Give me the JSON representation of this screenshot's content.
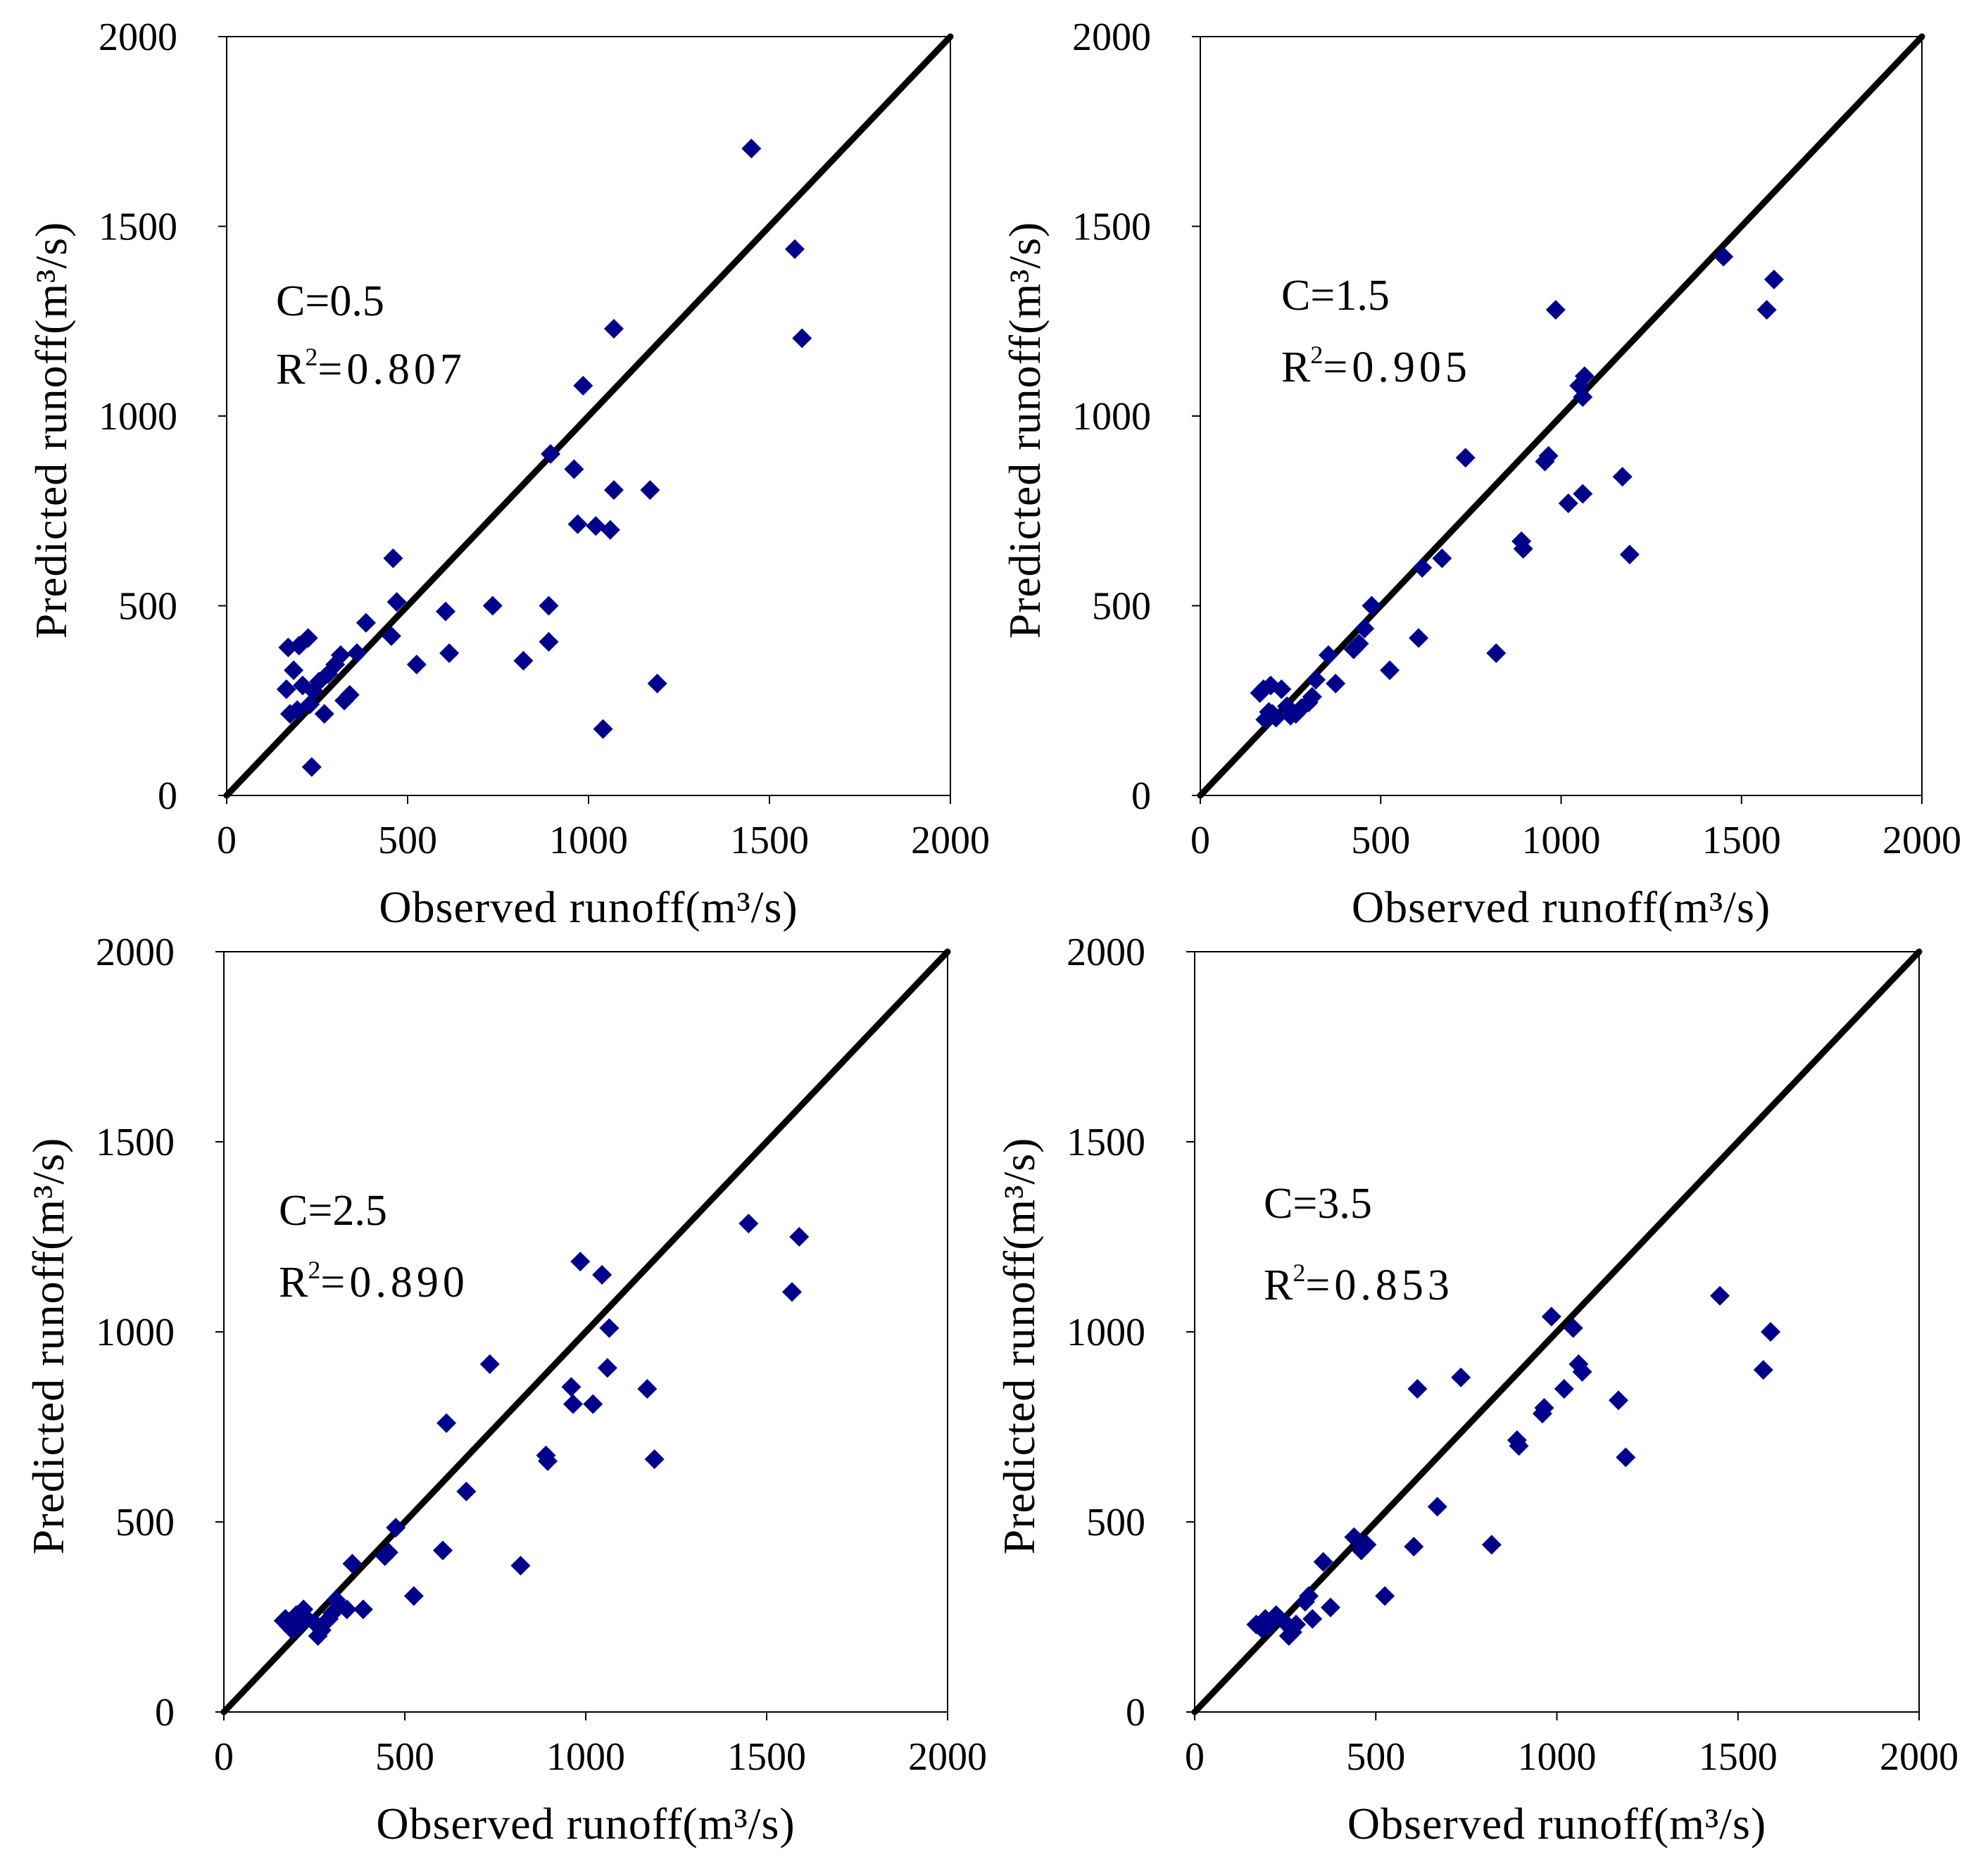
{
  "figure": {
    "colors": {
      "marker": "#00008B",
      "line": "#000000",
      "frame": "#000000"
    }
  },
  "chart_data": [
    {
      "type": "scatter",
      "panel": "top-left",
      "xlabel": "Observed runoff(m³/s)",
      "ylabel": "Predicted runoff(m³/s)",
      "xlim": [
        0,
        2000
      ],
      "ylim": [
        0,
        2000
      ],
      "xticks": [
        "0",
        "500",
        "1000",
        "1500",
        "2000"
      ],
      "yticks": [
        "0",
        "500",
        "1000",
        "1500",
        "2000"
      ],
      "annotation": {
        "c_label": "C=0.5",
        "r2_prefix": "R",
        "r2_sup": "2",
        "r2_value": "=0.807"
      },
      "reference_line": "y = x",
      "points": [
        [
          1450,
          1705
        ],
        [
          1570,
          1440
        ],
        [
          1590,
          1205
        ],
        [
          1070,
          1230
        ],
        [
          985,
          1080
        ],
        [
          895,
          900
        ],
        [
          960,
          860
        ],
        [
          970,
          715
        ],
        [
          1020,
          710
        ],
        [
          1060,
          700
        ],
        [
          1070,
          805
        ],
        [
          1170,
          805
        ],
        [
          1190,
          295
        ],
        [
          1040,
          175
        ],
        [
          890,
          500
        ],
        [
          890,
          405
        ],
        [
          820,
          355
        ],
        [
          735,
          500
        ],
        [
          615,
          375
        ],
        [
          605,
          485
        ],
        [
          525,
          345
        ],
        [
          460,
          625
        ],
        [
          470,
          510
        ],
        [
          455,
          420
        ],
        [
          385,
          455
        ],
        [
          360,
          375
        ],
        [
          340,
          265
        ],
        [
          325,
          250
        ],
        [
          315,
          370
        ],
        [
          300,
          345
        ],
        [
          280,
          320
        ],
        [
          270,
          215
        ],
        [
          255,
          300
        ],
        [
          240,
          275
        ],
        [
          235,
          75
        ],
        [
          225,
          415
        ],
        [
          210,
          290
        ],
        [
          200,
          395
        ],
        [
          185,
          330
        ],
        [
          170,
          390
        ],
        [
          165,
          280
        ],
        [
          175,
          215
        ],
        [
          195,
          225
        ],
        [
          230,
          240
        ]
      ]
    },
    {
      "type": "scatter",
      "panel": "top-right",
      "xlabel": "Observed runoff(m³/s)",
      "ylabel": "Predicted runoff(m³/s)",
      "xlim": [
        0,
        2000
      ],
      "ylim": [
        0,
        2000
      ],
      "xticks": [
        "0",
        "500",
        "1000",
        "1500",
        "2000"
      ],
      "yticks": [
        "0",
        "500",
        "1000",
        "1500",
        "2000"
      ],
      "annotation": {
        "c_label": "C=1.5",
        "r2_prefix": "R",
        "r2_sup": "2",
        "r2_value": "=0.905"
      },
      "reference_line": "y = x",
      "points": [
        [
          1450,
          1420
        ],
        [
          1590,
          1360
        ],
        [
          1570,
          1280
        ],
        [
          985,
          1280
        ],
        [
          1065,
          1105
        ],
        [
          1050,
          1080
        ],
        [
          1060,
          1050
        ],
        [
          735,
          890
        ],
        [
          965,
          895
        ],
        [
          955,
          880
        ],
        [
          1170,
          840
        ],
        [
          1060,
          795
        ],
        [
          1020,
          770
        ],
        [
          890,
          670
        ],
        [
          895,
          650
        ],
        [
          1190,
          635
        ],
        [
          670,
          625
        ],
        [
          615,
          600
        ],
        [
          605,
          415
        ],
        [
          525,
          330
        ],
        [
          820,
          375
        ],
        [
          475,
          500
        ],
        [
          455,
          440
        ],
        [
          440,
          400
        ],
        [
          425,
          385
        ],
        [
          375,
          295
        ],
        [
          355,
          370
        ],
        [
          320,
          305
        ],
        [
          310,
          260
        ],
        [
          300,
          245
        ],
        [
          280,
          230
        ],
        [
          265,
          215
        ],
        [
          250,
          210
        ],
        [
          240,
          235
        ],
        [
          225,
          280
        ],
        [
          210,
          205
        ],
        [
          200,
          215
        ],
        [
          190,
          220
        ],
        [
          180,
          200
        ],
        [
          175,
          280
        ],
        [
          165,
          270
        ],
        [
          195,
          290
        ]
      ]
    },
    {
      "type": "scatter",
      "panel": "bottom-left",
      "xlabel": "Observed runoff(m³/s)",
      "ylabel": "Predicted runoff(m³/s)",
      "xlim": [
        0,
        2000
      ],
      "ylim": [
        0,
        2000
      ],
      "xticks": [
        "0",
        "500",
        "1000",
        "1500",
        "2000"
      ],
      "yticks": [
        "0",
        "500",
        "1000",
        "1500",
        "2000"
      ],
      "annotation": {
        "c_label": "C=2.5",
        "r2_prefix": "R",
        "r2_sup": "2",
        "r2_value": "=0.890"
      },
      "reference_line": "y = x",
      "points": [
        [
          1450,
          1285
        ],
        [
          1590,
          1250
        ],
        [
          1570,
          1105
        ],
        [
          985,
          1185
        ],
        [
          1045,
          1150
        ],
        [
          1065,
          1010
        ],
        [
          1060,
          905
        ],
        [
          735,
          915
        ],
        [
          960,
          855
        ],
        [
          965,
          810
        ],
        [
          1020,
          810
        ],
        [
          1170,
          850
        ],
        [
          1190,
          665
        ],
        [
          890,
          675
        ],
        [
          895,
          660
        ],
        [
          820,
          385
        ],
        [
          670,
          580
        ],
        [
          615,
          760
        ],
        [
          605,
          425
        ],
        [
          525,
          305
        ],
        [
          475,
          485
        ],
        [
          455,
          420
        ],
        [
          445,
          410
        ],
        [
          385,
          270
        ],
        [
          355,
          390
        ],
        [
          340,
          270
        ],
        [
          320,
          280
        ],
        [
          310,
          295
        ],
        [
          300,
          260
        ],
        [
          290,
          245
        ],
        [
          270,
          215
        ],
        [
          260,
          200
        ],
        [
          250,
          235
        ],
        [
          230,
          245
        ],
        [
          220,
          270
        ],
        [
          210,
          230
        ],
        [
          200,
          255
        ],
        [
          190,
          215
        ],
        [
          180,
          225
        ],
        [
          170,
          245
        ],
        [
          165,
          240
        ]
      ]
    },
    {
      "type": "scatter",
      "panel": "bottom-right",
      "xlabel": "Observed runoff(m³/s)",
      "ylabel": "Predicted runoff(m³/s)",
      "xlim": [
        0,
        2000
      ],
      "ylim": [
        0,
        2000
      ],
      "xticks": [
        "0",
        "500",
        "1000",
        "1500",
        "2000"
      ],
      "yticks": [
        "0",
        "500",
        "1000",
        "1500",
        "2000"
      ],
      "annotation": {
        "c_label": "C=3.5",
        "r2_prefix": "R",
        "r2_sup": "2",
        "r2_value": "=0.853"
      },
      "reference_line": "y = x",
      "points": [
        [
          1450,
          1095
        ],
        [
          1590,
          1000
        ],
        [
          1570,
          900
        ],
        [
          985,
          1040
        ],
        [
          1045,
          1010
        ],
        [
          1060,
          915
        ],
        [
          1070,
          895
        ],
        [
          735,
          880
        ],
        [
          615,
          850
        ],
        [
          1020,
          850
        ],
        [
          965,
          800
        ],
        [
          960,
          785
        ],
        [
          1170,
          820
        ],
        [
          890,
          715
        ],
        [
          895,
          700
        ],
        [
          1190,
          670
        ],
        [
          670,
          540
        ],
        [
          605,
          435
        ],
        [
          820,
          440
        ],
        [
          525,
          305
        ],
        [
          475,
          440
        ],
        [
          460,
          425
        ],
        [
          440,
          460
        ],
        [
          375,
          275
        ],
        [
          355,
          395
        ],
        [
          325,
          245
        ],
        [
          315,
          305
        ],
        [
          305,
          290
        ],
        [
          280,
          230
        ],
        [
          270,
          210
        ],
        [
          260,
          200
        ],
        [
          250,
          235
        ],
        [
          225,
          255
        ],
        [
          210,
          235
        ],
        [
          200,
          225
        ],
        [
          185,
          220
        ],
        [
          170,
          230
        ],
        [
          195,
          245
        ]
      ]
    }
  ]
}
